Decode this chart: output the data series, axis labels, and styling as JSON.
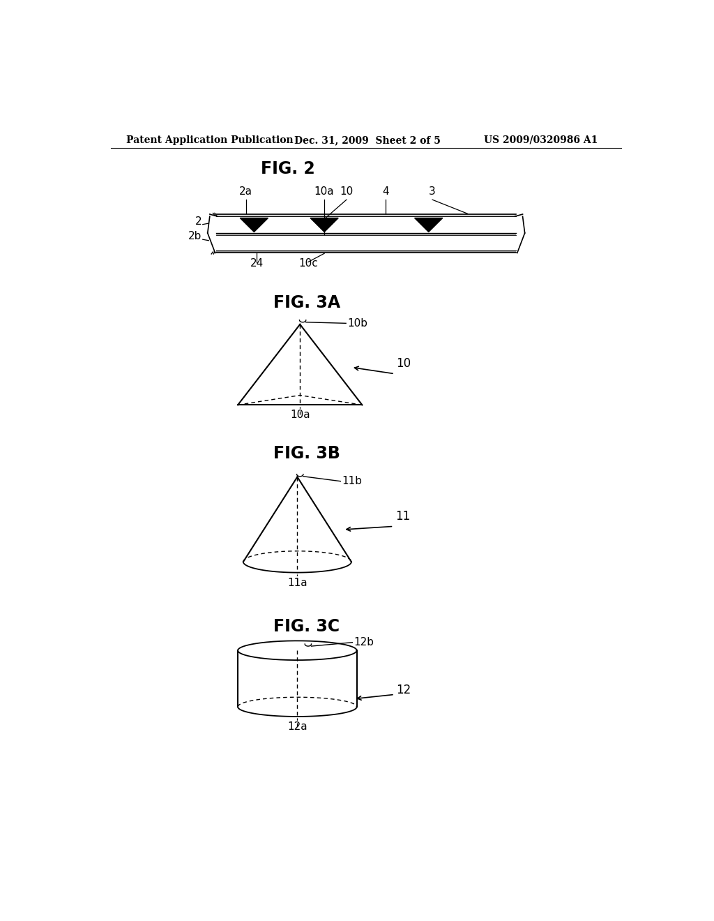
{
  "header_left": "Patent Application Publication",
  "header_mid": "Dec. 31, 2009  Sheet 2 of 5",
  "header_right": "US 2009/0320986 A1",
  "fig2_title": "FIG. 2",
  "fig3a_title": "FIG. 3A",
  "fig3b_title": "FIG. 3B",
  "fig3c_title": "FIG. 3C",
  "bg_color": "#ffffff",
  "line_color": "#000000"
}
